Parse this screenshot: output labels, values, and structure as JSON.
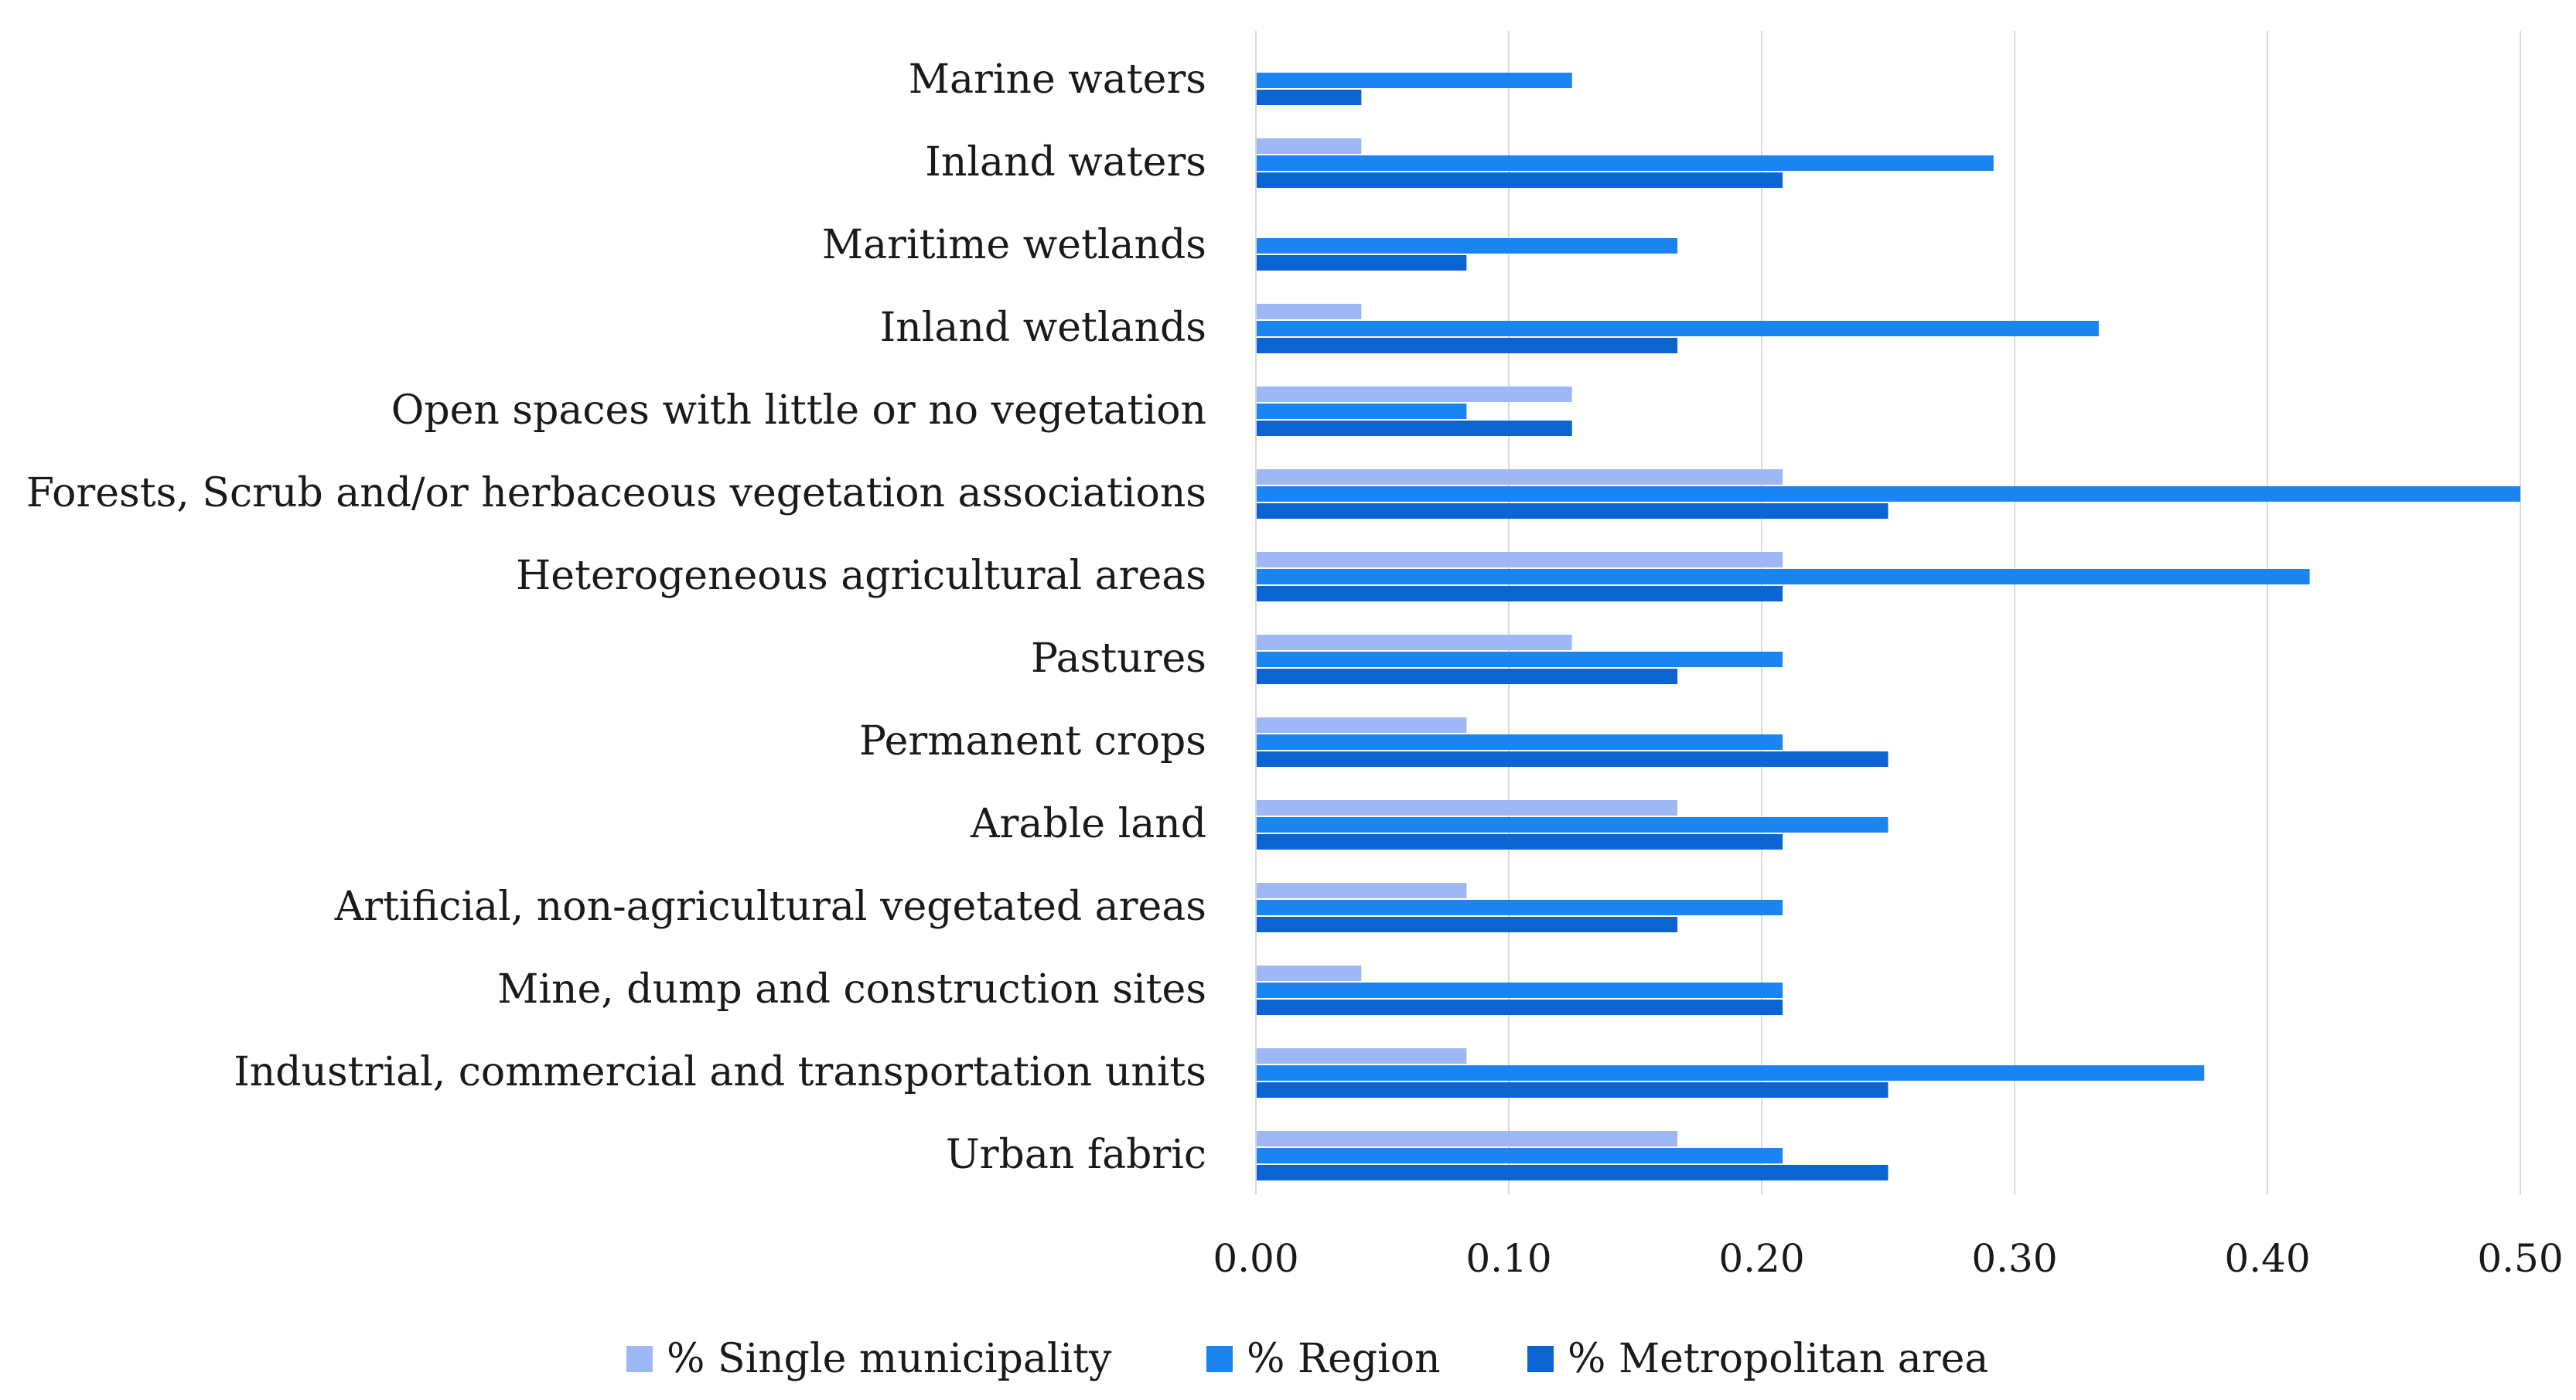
{
  "chart_data": {
    "type": "bar",
    "orientation": "horizontal",
    "categories": [
      "Marine waters",
      "Inland waters",
      "Maritime wetlands",
      "Inland wetlands",
      "Open spaces with little or no vegetation",
      "Forests, Scrub and/or herbaceous vegetation associations",
      "Heterogeneous agricultural areas",
      "Pastures",
      "Permanent crops",
      "Arable land",
      "Artificial, non-agricultural vegetated areas",
      "Mine, dump and construction sites",
      "Industrial, commercial and transportation units",
      "Urban fabric"
    ],
    "series": [
      {
        "name": "% Single municipality",
        "color": "#9db8f5",
        "values": [
          0,
          0.0417,
          0,
          0.0417,
          0.125,
          0.2083,
          0.2083,
          0.125,
          0.0833,
          0.1667,
          0.0833,
          0.0417,
          0.0833,
          0.1667
        ]
      },
      {
        "name": "% Region",
        "color": "#1a84f0",
        "values": [
          0.125,
          0.2917,
          0.1667,
          0.3333,
          0.0833,
          0.5,
          0.4167,
          0.2083,
          0.2083,
          0.25,
          0.2083,
          0.2083,
          0.375,
          0.2083
        ]
      },
      {
        "name": "% Metropolitan area",
        "color": "#0a64d2",
        "values": [
          0.0417,
          0.2083,
          0.0833,
          0.1667,
          0.125,
          0.25,
          0.2083,
          0.1667,
          0.25,
          0.2083,
          0.1667,
          0.2083,
          0.25,
          0.25
        ]
      }
    ],
    "xlim": [
      0,
      0.5
    ],
    "xticks": [
      "0.00",
      "0.10",
      "0.20",
      "0.30",
      "0.40",
      "0.50"
    ],
    "grid": "vertical",
    "legend_position": "bottom"
  }
}
